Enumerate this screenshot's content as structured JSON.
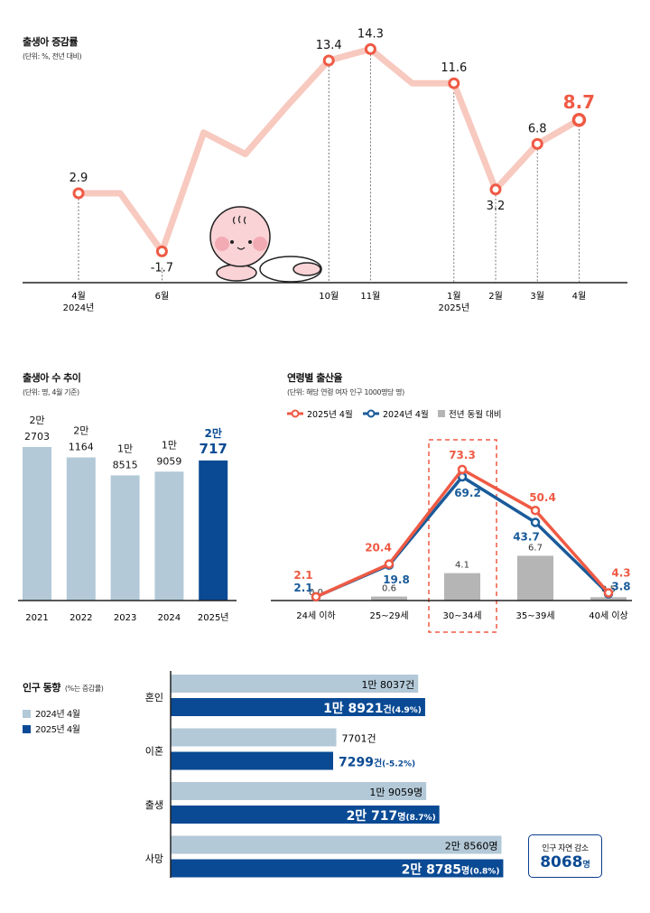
{
  "colors": {
    "line_light": "#f7c9bf",
    "accent": "#ef5a44",
    "navy": "#0a4a94",
    "blue_2024": "#1a5b9a",
    "light_blue": "#b3c9d8",
    "gray": "#b5b5b5"
  },
  "chart_data": [
    {
      "type": "line",
      "title": "출생아 증감률",
      "subtitle": "(단위: %, 전년 대비)",
      "x": [
        "2024-04",
        "2024-05",
        "2024-06",
        "2024-07",
        "2024-08",
        "2024-09",
        "2024-10",
        "2024-11",
        "2024-12",
        "2025-01",
        "2025-02",
        "2025-03",
        "2025-04"
      ],
      "values": [
        2.9,
        2.9,
        -1.7,
        7.7,
        6.0,
        9.8,
        13.4,
        14.3,
        11.6,
        11.6,
        3.2,
        6.8,
        8.7
      ],
      "labels": [
        {
          "i": 0,
          "text": "2.9"
        },
        {
          "i": 2,
          "text": "-1.7"
        },
        {
          "i": 6,
          "text": "13.4"
        },
        {
          "i": 7,
          "text": "14.3"
        },
        {
          "i": 9,
          "text": "11.6"
        },
        {
          "i": 10,
          "text": "3.2"
        },
        {
          "i": 11,
          "text": "6.8"
        },
        {
          "i": 12,
          "text": "8.7"
        }
      ],
      "tick_labels": [
        {
          "i": 0,
          "text": "4월",
          "sub": "2024년"
        },
        {
          "i": 2,
          "text": "6월",
          "sub": ""
        },
        {
          "i": 6,
          "text": "10월",
          "sub": ""
        },
        {
          "i": 7,
          "text": "11월",
          "sub": ""
        },
        {
          "i": 9,
          "text": "1월",
          "sub": "2025년"
        },
        {
          "i": 10,
          "text": "2월",
          "sub": ""
        },
        {
          "i": 11,
          "text": "3월",
          "sub": ""
        },
        {
          "i": 12,
          "text": "4월",
          "sub": ""
        }
      ],
      "ylim": [
        -4,
        16
      ]
    },
    {
      "type": "bar",
      "title": "출생아 수 추이",
      "subtitle": "(단위: 명, 4월 기준)",
      "categories": [
        "2021",
        "2022",
        "2023",
        "2024",
        "2025년"
      ],
      "values": [
        22703,
        21164,
        18515,
        19059,
        20717
      ],
      "label_top": [
        "2만",
        "2만",
        "1만",
        "1만",
        "2만"
      ],
      "label_bottom": [
        "2703",
        "1164",
        "8515",
        "9059",
        "717"
      ],
      "ylim": [
        0,
        23000
      ]
    },
    {
      "type": "line",
      "title": "연령별 출산율",
      "subtitle": "(단위: 해당 연령 여자 인구 1000명당 명)",
      "categories": [
        "24세 이하",
        "25~29세",
        "30~34세",
        "35~39세",
        "40세 이상"
      ],
      "series": [
        {
          "name": "2025년 4월",
          "values": [
            2.1,
            20.4,
            73.3,
            50.4,
            4.3
          ]
        },
        {
          "name": "2024년 4월",
          "values": [
            2.1,
            19.8,
            69.2,
            43.7,
            3.8
          ]
        },
        {
          "name": "전년 동월 대비",
          "type": "bar",
          "values": [
            0.0,
            0.6,
            4.1,
            6.7,
            0.5
          ]
        }
      ],
      "highlight": "30~34세",
      "ylim": [
        0,
        80
      ]
    },
    {
      "type": "bar",
      "orientation": "horizontal",
      "title": "인구 동향",
      "title_note": "(%는 증감률)",
      "legend": [
        "2024년 4월",
        "2025년 4월"
      ],
      "categories": [
        "혼인",
        "이혼",
        "출생",
        "사망"
      ],
      "series": [
        {
          "name": "2024년 4월",
          "values": [
            18037,
            7701,
            19059,
            28560
          ],
          "labels": [
            "1만 8037건",
            "7701건",
            "1만 9059명",
            "2만 8560명"
          ]
        },
        {
          "name": "2025년 4월",
          "values": [
            18921,
            7299,
            20717,
            28785
          ],
          "labels_main": [
            "1만 8921",
            "7299",
            "2만 717",
            "2만 8785"
          ],
          "labels_unit": [
            "건",
            "건",
            "명",
            "명"
          ],
          "labels_pct": [
            "(4.9%)",
            "(-5.2%)",
            "(8.7%)",
            "(0.8%)"
          ]
        }
      ],
      "callout": {
        "label": "인구 자연 감소",
        "value": "8068",
        "unit": "명"
      }
    }
  ]
}
